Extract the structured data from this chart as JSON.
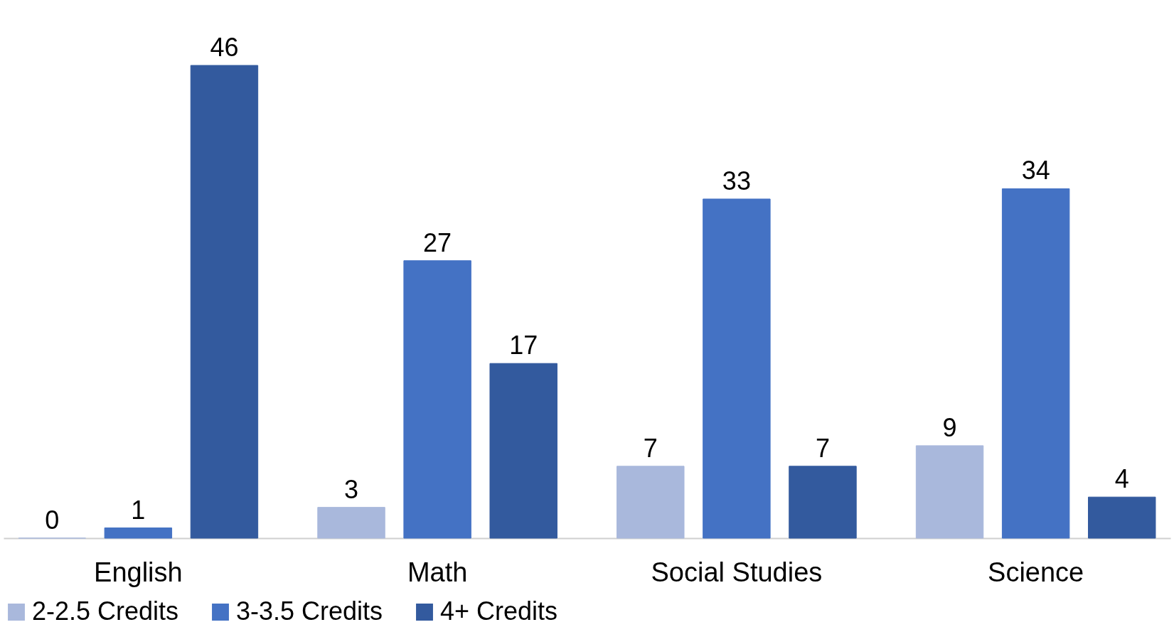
{
  "chart_data": {
    "type": "bar",
    "categories": [
      "English",
      "Math",
      "Social Studies",
      "Science"
    ],
    "series": [
      {
        "name": "2-2.5 Credits",
        "color": "#a9b8dc",
        "values": [
          0,
          3,
          7,
          9
        ]
      },
      {
        "name": "3-3.5 Credits",
        "color": "#4472c4",
        "values": [
          1,
          27,
          33,
          34
        ]
      },
      {
        "name": "4+ Credits",
        "color": "#335a9e",
        "values": [
          46,
          17,
          7,
          4
        ]
      }
    ],
    "data_labels": true,
    "legend": "bottom",
    "grid": false
  }
}
